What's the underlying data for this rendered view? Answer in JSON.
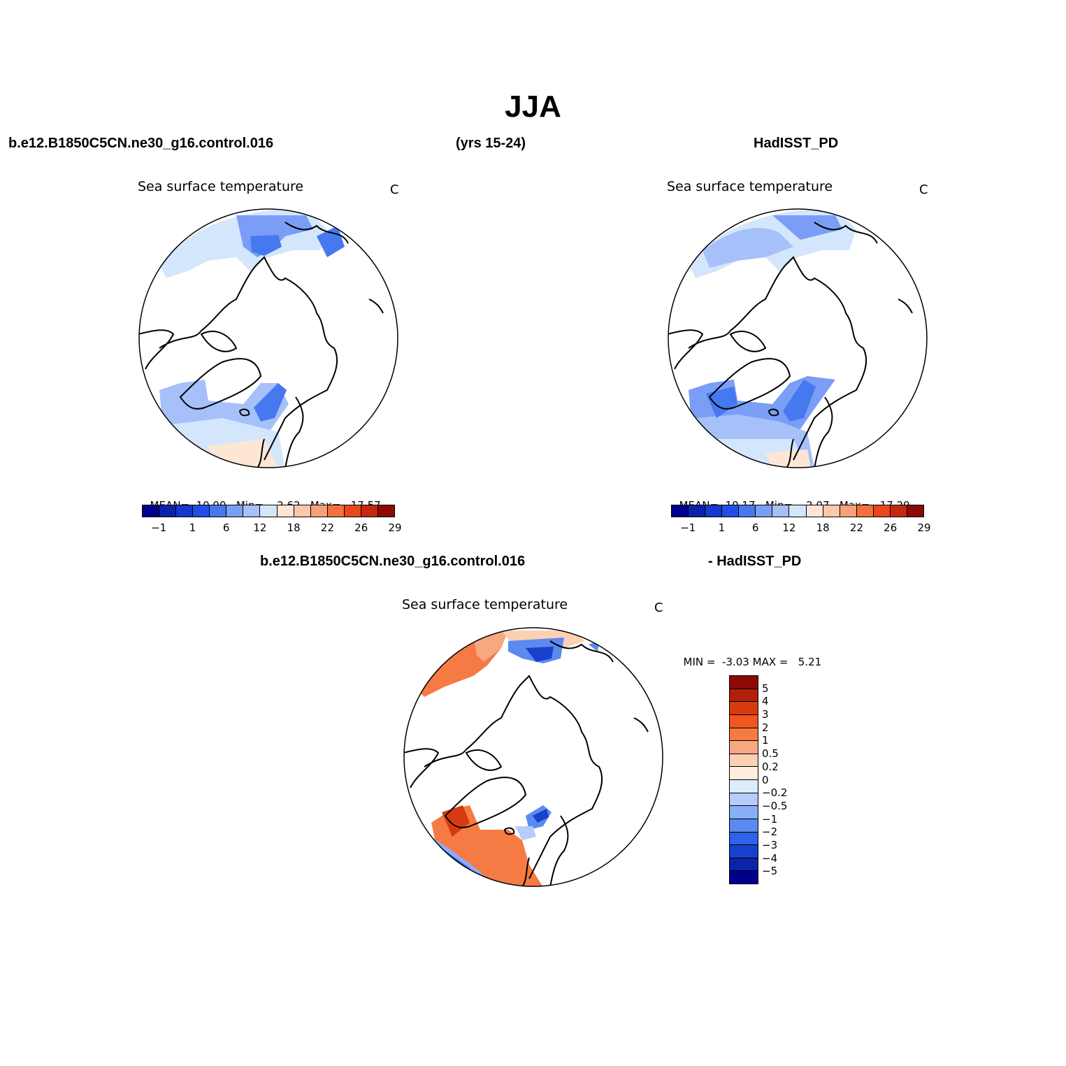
{
  "title": "JJA",
  "headers": {
    "left": "b.e12.B1850C5CN.ne30_g16.control.016",
    "center": "(yrs 15-24)",
    "right": "HadISST_PD",
    "diff_left": "b.e12.B1850C5CN.ne30_g16.control.016",
    "diff_right": "- HadISST_PD"
  },
  "panels": {
    "model": {
      "subtitle": "Sea surface temperature",
      "units": "C",
      "mean_label": "MEAN=",
      "mean_value": "10.00",
      "min_label": "Min=",
      "min_value": "2.62",
      "max_label": "Max=",
      "max_value": "17.57"
    },
    "obs": {
      "subtitle": "Sea surface temperature",
      "units": "C",
      "mean_label": "MEAN=",
      "mean_value": "10.17",
      "min_label": "Min=",
      "min_value": "2.07",
      "max_label": "Max=",
      "max_value": "17.29"
    },
    "diff": {
      "subtitle": "Sea surface temperature",
      "units": "C",
      "min_label": "MIN =",
      "min_value": "-3.03",
      "max_label": "MAX =",
      "max_value": "5.21"
    }
  },
  "abs_colorbar": {
    "colors": [
      "#00008c",
      "#0a22a8",
      "#1439cc",
      "#1e50e6",
      "#4678f0",
      "#7a9ef6",
      "#a6c0fa",
      "#d4e6fc",
      "#fde6d4",
      "#fcc8aa",
      "#f9a07a",
      "#f47040",
      "#e8461c",
      "#c42810",
      "#8c0a05"
    ],
    "labels": [
      "−1",
      "1",
      "6",
      "12",
      "18",
      "22",
      "26",
      "29"
    ]
  },
  "diff_colorbar": {
    "colors": [
      "#8c0a05",
      "#b0200a",
      "#d83a10",
      "#f0561e",
      "#f57a44",
      "#f8a880",
      "#fcd0b4",
      "#fdeee0",
      "#dcecfc",
      "#b4cdfa",
      "#8aaef6",
      "#5a8af0",
      "#2e62e8",
      "#1840cc",
      "#0a24a8",
      "#00008c"
    ],
    "labels": [
      "5",
      "4",
      "3",
      "2",
      "1",
      "0.5",
      "0.2",
      "0",
      "−0.2",
      "−0.5",
      "−1",
      "−2",
      "−3",
      "−4",
      "−5"
    ]
  }
}
